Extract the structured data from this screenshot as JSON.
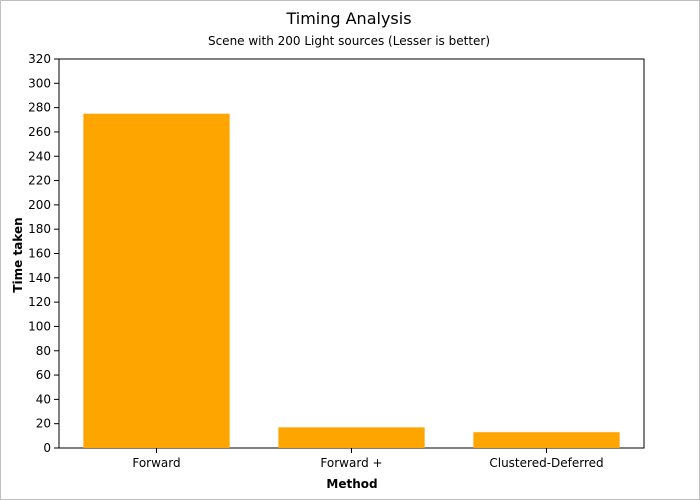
{
  "chart_data": {
    "type": "bar",
    "title": "Timing Analysis",
    "subtitle": "Scene with 200 Light sources (Lesser is better)",
    "xlabel": "Method",
    "ylabel": "Time taken",
    "categories": [
      "Forward",
      "Forward +",
      "Clustered-Deferred"
    ],
    "values": [
      275,
      17,
      13
    ],
    "ylim": [
      0,
      320
    ],
    "yticks": [
      "0",
      "20",
      "40",
      "60",
      "80",
      "100",
      "120",
      "140",
      "160",
      "180",
      "200",
      "220",
      "240",
      "260",
      "280",
      "300",
      "320"
    ],
    "bar_color": "#ffa500",
    "grid": false,
    "legend": "none"
  }
}
